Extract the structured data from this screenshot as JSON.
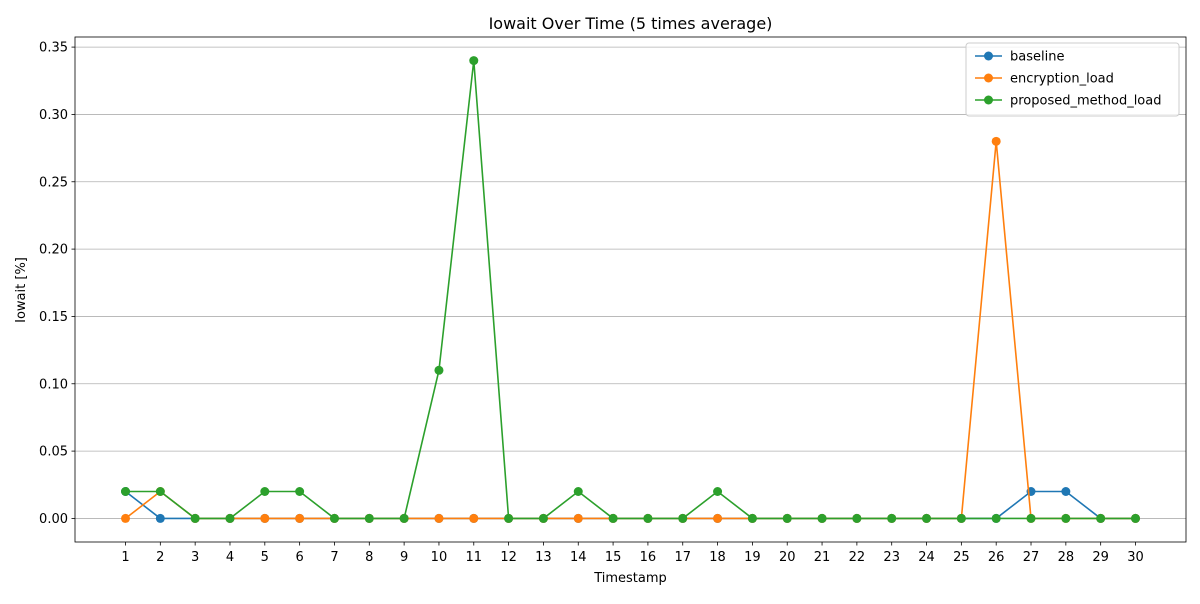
{
  "chart_data": {
    "type": "line",
    "title": "Iowait Over Time (5 times average)",
    "xlabel": "Timestamp",
    "ylabel": "Iowait [%]",
    "x": [
      1,
      2,
      3,
      4,
      5,
      6,
      7,
      8,
      9,
      10,
      11,
      12,
      13,
      14,
      15,
      16,
      17,
      18,
      19,
      20,
      21,
      22,
      23,
      24,
      25,
      26,
      27,
      28,
      29,
      30
    ],
    "ylim": [
      -0.0175,
      0.3575
    ],
    "yticks": [
      0.0,
      0.05,
      0.1,
      0.15,
      0.2,
      0.25,
      0.3,
      0.35
    ],
    "ytick_labels": [
      "0.00",
      "0.05",
      "0.10",
      "0.15",
      "0.20",
      "0.25",
      "0.30",
      "0.35"
    ],
    "grid": "horizontal",
    "legend_position": "top-right",
    "series": [
      {
        "name": "baseline",
        "color": "#1f77b4",
        "values": [
          0.02,
          0,
          0,
          0,
          0,
          0,
          0,
          0,
          0,
          0,
          0,
          0,
          0,
          0,
          0,
          0,
          0,
          0,
          0,
          0,
          0,
          0,
          0,
          0,
          0,
          0,
          0.02,
          0.02,
          0,
          0
        ]
      },
      {
        "name": "encryption_load",
        "color": "#ff7f0e",
        "values": [
          0,
          0.02,
          0,
          0,
          0,
          0,
          0,
          0,
          0,
          0,
          0,
          0,
          0,
          0,
          0,
          0,
          0,
          0,
          0,
          0,
          0,
          0,
          0,
          0,
          0,
          0.28,
          0,
          0,
          0,
          0
        ]
      },
      {
        "name": "proposed_method_load",
        "color": "#2ca02c",
        "values": [
          0.02,
          0.02,
          0,
          0,
          0.02,
          0.02,
          0,
          0,
          0,
          0.11,
          0.34,
          0,
          0,
          0.02,
          0,
          0,
          0,
          0.02,
          0,
          0,
          0,
          0,
          0,
          0,
          0,
          0,
          0,
          0,
          0,
          0
        ]
      }
    ]
  }
}
